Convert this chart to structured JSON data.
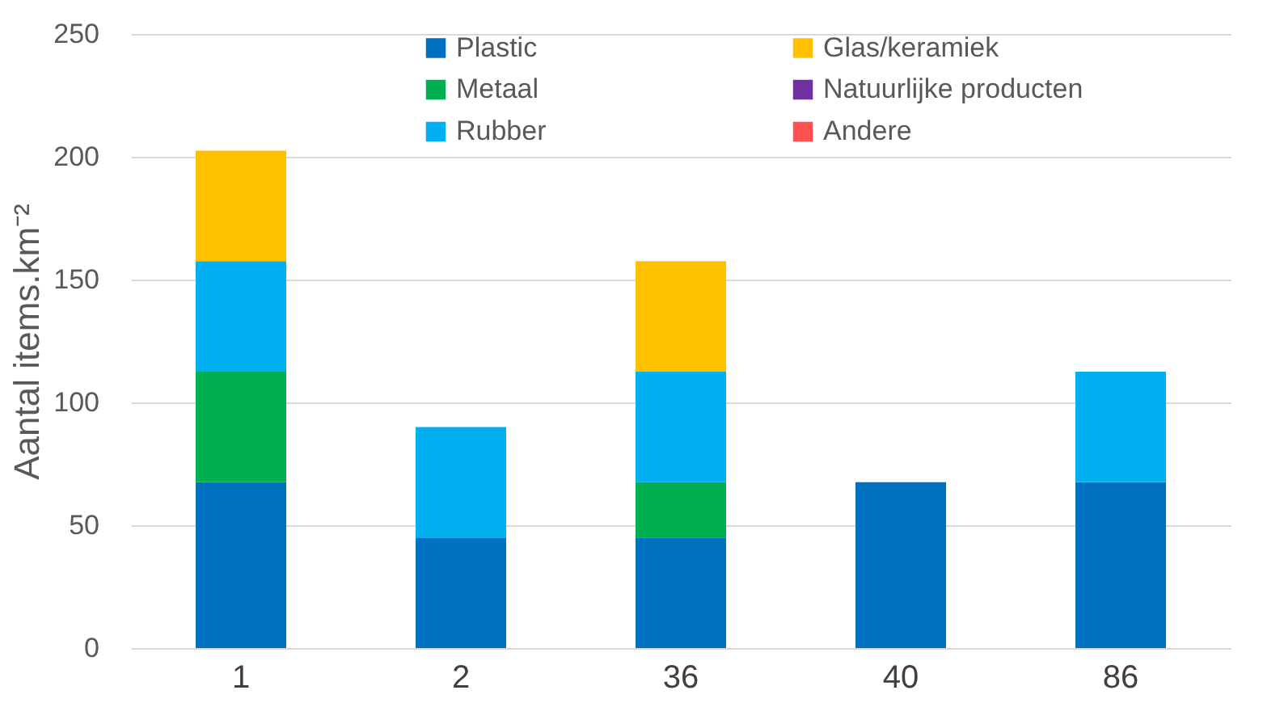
{
  "chart_data": {
    "type": "bar",
    "stacked": true,
    "ylabel": "Aantal items.km⁻²",
    "categories": [
      "1",
      "2",
      "36",
      "40",
      "86"
    ],
    "series": [
      {
        "name": "Plastic",
        "color": "#0070c0",
        "values": [
          67.5,
          45,
          45,
          67.5,
          67.5
        ]
      },
      {
        "name": "Metaal",
        "color": "#00b050",
        "values": [
          45,
          null,
          22.5,
          null,
          null
        ]
      },
      {
        "name": "Rubber",
        "color": "#00b0f0",
        "values": [
          45,
          45,
          45,
          null,
          45
        ]
      },
      {
        "name": "Glas/keramiek",
        "color": "#ffc000",
        "values": [
          45,
          null,
          45,
          null,
          null
        ]
      },
      {
        "name": "Natuurlijke producten",
        "color": "#7030a0",
        "values": [
          null,
          null,
          null,
          null,
          null
        ]
      },
      {
        "name": "Andere",
        "color": "#ff5050",
        "values": [
          null,
          null,
          null,
          null,
          null
        ]
      }
    ],
    "ylim": [
      0,
      250
    ],
    "yticks": [
      0,
      50,
      100,
      150,
      200,
      250
    ],
    "grid": "y",
    "legend": "top"
  }
}
